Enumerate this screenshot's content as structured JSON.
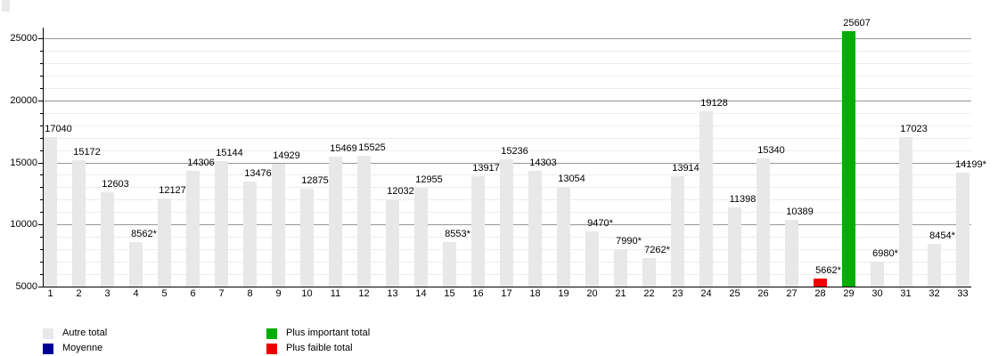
{
  "chart_data": {
    "type": "bar",
    "title": "",
    "xlabel": "",
    "ylabel": "",
    "categories": [
      "1",
      "2",
      "3",
      "4",
      "5",
      "6",
      "7",
      "8",
      "9",
      "10",
      "11",
      "12",
      "13",
      "14",
      "15",
      "16",
      "17",
      "18",
      "19",
      "20",
      "21",
      "22",
      "23",
      "24",
      "25",
      "26",
      "27",
      "28",
      "29",
      "30",
      "31",
      "32",
      "33"
    ],
    "values": [
      17040,
      15172,
      12603,
      8562,
      12127,
      14306,
      15144,
      13476,
      14929,
      12875,
      15469,
      15525,
      12032,
      12955,
      8553,
      13917,
      15236,
      14303,
      13054,
      9470,
      7990,
      7262,
      13914,
      19128,
      11398,
      15340,
      10389,
      5662,
      25607,
      6980,
      17023,
      8454,
      14199
    ],
    "bar_labels": [
      "17040",
      "15172",
      "12603",
      "8562*",
      "12127",
      "14306",
      "15144",
      "13476",
      "14929",
      "12875",
      "15469",
      "15525",
      "12032",
      "12955",
      "8553*",
      "13917",
      "15236",
      "14303",
      "13054",
      "9470*",
      "7990*",
      "7262*",
      "13914",
      "19128",
      "11398",
      "15340",
      "10389",
      "5662*",
      "25607",
      "6980*",
      "17023",
      "8454*",
      "14199*"
    ],
    "bar_roles": [
      "autre",
      "autre",
      "autre",
      "autre",
      "autre",
      "autre",
      "autre",
      "autre",
      "autre",
      "autre",
      "autre",
      "autre",
      "autre",
      "autre",
      "autre",
      "autre",
      "autre",
      "autre",
      "autre",
      "autre",
      "autre",
      "autre",
      "autre",
      "autre",
      "autre",
      "autre",
      "autre",
      "faible",
      "important",
      "autre",
      "autre",
      "autre",
      "autre"
    ],
    "ylim": [
      5000,
      25860
    ],
    "yticks": [
      5000,
      10000,
      15000,
      20000,
      25000
    ],
    "minor_grid_step": 1000,
    "grid": "on",
    "colors": {
      "autre": "#e8e8e8",
      "moyenne": "#000099",
      "important": "#00ad00",
      "faible": "#ee0000"
    },
    "highlights": {
      "max_category": "29",
      "max_value": 25607,
      "min_category": "28",
      "min_value": 5662
    },
    "legend_position": "bottom-left",
    "legend": [
      {
        "label": "Autre total",
        "role": "autre",
        "color": "#e8e8e8"
      },
      {
        "label": "Moyenne",
        "role": "moyenne",
        "color": "#000099"
      },
      {
        "label": "Plus important total",
        "role": "important",
        "color": "#00ad00"
      },
      {
        "label": "Plus faible total",
        "role": "faible",
        "color": "#ee0000"
      }
    ]
  }
}
